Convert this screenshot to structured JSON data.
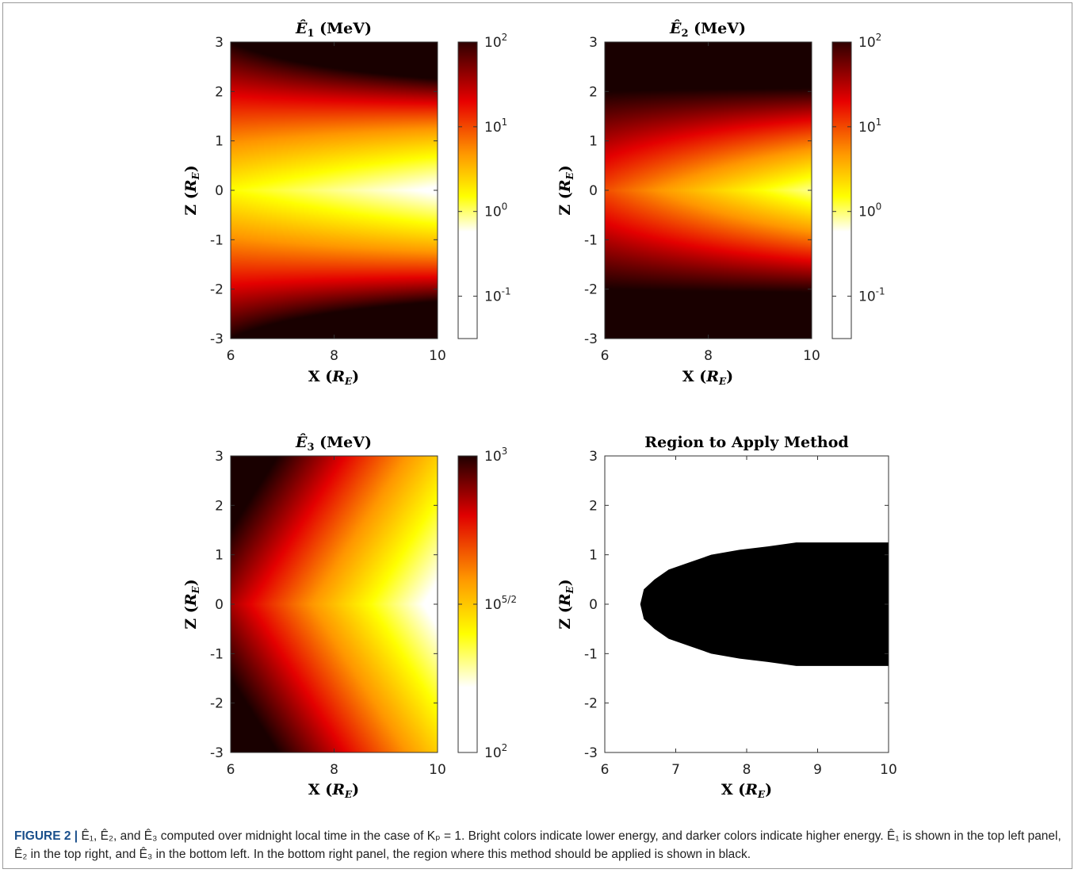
{
  "colors": {
    "heat_dark": "#000000",
    "heat_red": "#e00000",
    "heat_yellow": "#ffff00",
    "heat_white": "#ffffff",
    "frame": "#9a9a9a",
    "caption_label": "#1a4f8b"
  },
  "axes_text": {
    "x_label_main": "X (",
    "x_label_sym": "R",
    "x_label_sub": "E",
    "x_label_close": ")",
    "y_label_main": "Z (",
    "y_label_sym": "R",
    "y_label_sub": "E",
    "y_label_close": ")"
  },
  "chart_data": [
    {
      "type": "heatmap",
      "title_sym": "Ê",
      "title_sub": "1",
      "title_rest": " (MeV)",
      "xlim": [
        6,
        10
      ],
      "ylim": [
        -3,
        3
      ],
      "xticks": [
        "6",
        "8",
        "10"
      ],
      "yticks": [
        "3",
        "2",
        "1",
        "0",
        "-1",
        "-2",
        "-3"
      ],
      "colorbar": {
        "scale": "log",
        "range": [
          0.0316,
          100
        ],
        "ticks": [
          {
            "base": "10",
            "exp": "2"
          },
          {
            "base": "10",
            "exp": "1"
          },
          {
            "base": "10",
            "exp": "0"
          },
          {
            "base": "10",
            "exp": "-1"
          }
        ]
      }
    },
    {
      "type": "heatmap",
      "title_sym": "Ê",
      "title_sub": "2",
      "title_rest": " (MeV)",
      "xlim": [
        6,
        10
      ],
      "ylim": [
        -3,
        3
      ],
      "xticks": [
        "6",
        "8",
        "10"
      ],
      "yticks": [
        "3",
        "2",
        "1",
        "0",
        "-1",
        "-2",
        "-3"
      ],
      "colorbar": {
        "scale": "log",
        "range": [
          0.0316,
          100
        ],
        "ticks": [
          {
            "base": "10",
            "exp": "2"
          },
          {
            "base": "10",
            "exp": "1"
          },
          {
            "base": "10",
            "exp": "0"
          },
          {
            "base": "10",
            "exp": "-1"
          }
        ]
      }
    },
    {
      "type": "heatmap",
      "title_sym": "Ê",
      "title_sub": "3",
      "title_rest": " (MeV)",
      "xlim": [
        6,
        10
      ],
      "ylim": [
        -3,
        3
      ],
      "xticks": [
        "6",
        "8",
        "10"
      ],
      "yticks": [
        "3",
        "2",
        "1",
        "0",
        "-1",
        "-2",
        "-3"
      ],
      "colorbar": {
        "scale": "log",
        "range": [
          100,
          1000
        ],
        "ticks": [
          {
            "base": "10",
            "exp": "3"
          },
          {
            "base": "10",
            "exp": "5/2"
          },
          {
            "base": "10",
            "exp": "2"
          }
        ]
      }
    },
    {
      "type": "area",
      "title": "Region to Apply Method",
      "xlim": [
        6,
        10
      ],
      "ylim": [
        -3,
        3
      ],
      "xticks": [
        "6",
        "7",
        "8",
        "9",
        "10"
      ],
      "yticks": [
        "3",
        "2",
        "1",
        "0",
        "-1",
        "-2",
        "-3"
      ],
      "region_boundary": {
        "x": [
          6.5,
          6.55,
          6.7,
          6.9,
          7.2,
          7.5,
          7.9,
          8.3,
          8.7,
          9.2,
          10.0
        ],
        "z_half": [
          0.0,
          0.3,
          0.5,
          0.7,
          0.85,
          1.0,
          1.1,
          1.17,
          1.25,
          1.25,
          1.25
        ]
      },
      "fill": "#000000"
    }
  ],
  "caption": {
    "label": "FIGURE 2 |",
    "text": " Ê₁, Ê₂, and Ê₃ computed over midnight local time in the case of Kₚ = 1. Bright colors indicate lower energy, and darker colors indicate higher energy. Ê₁ is shown in the top left panel, Ê₂ in the top right, and Ê₃ in the bottom left. In the bottom right panel, the region where this method should be applied is shown in black."
  }
}
